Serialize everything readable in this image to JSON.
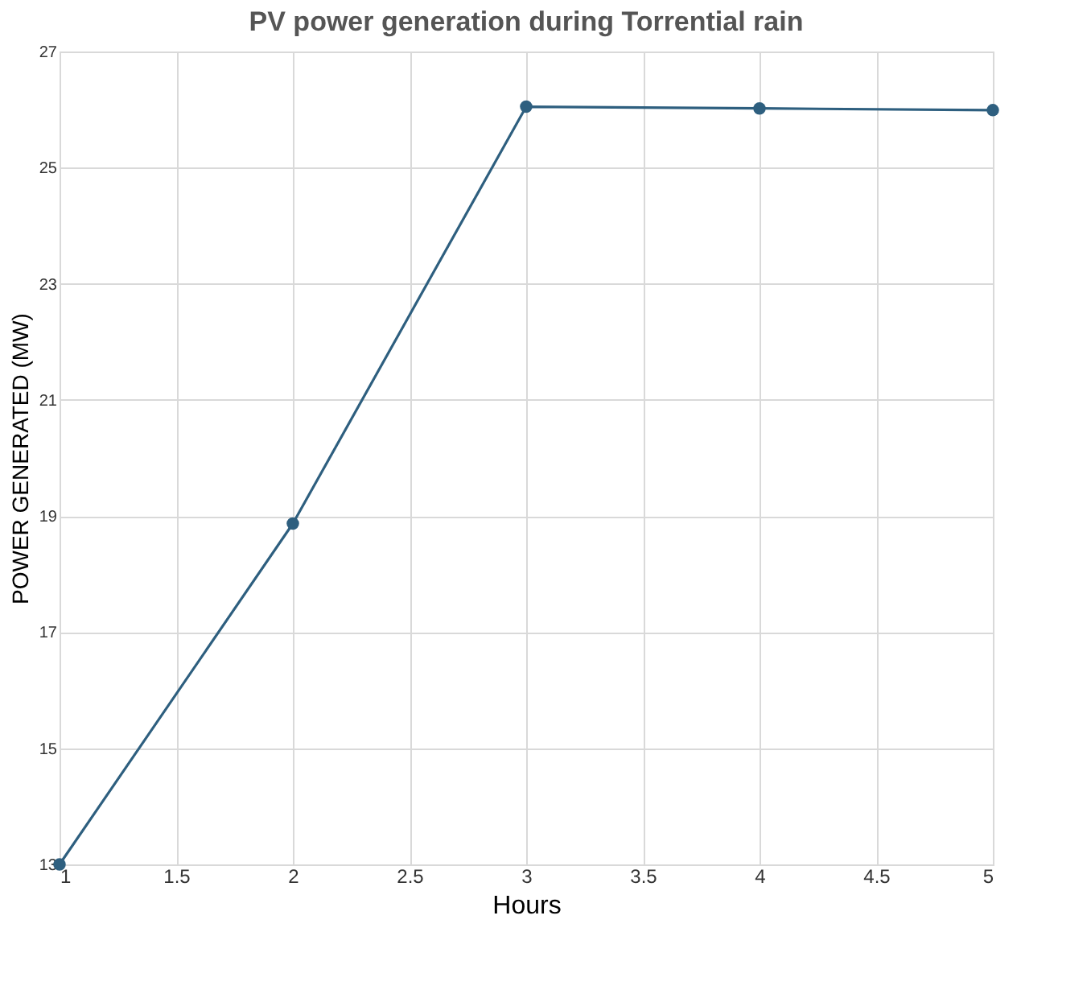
{
  "chart_data": {
    "type": "line",
    "title": "PV power generation during Torrential rain",
    "xlabel": "Hours",
    "ylabel": "POWER GENERATED (MW)",
    "x": [
      1,
      2,
      3,
      4,
      5
    ],
    "series": [
      {
        "color": "#2e5f7f",
        "values": [
          13.0,
          18.87,
          26.05,
          26.02,
          25.99
        ]
      }
    ],
    "xlim": [
      1,
      5
    ],
    "xticks": [
      1,
      1.5,
      2,
      2.5,
      3,
      3.5,
      4,
      4.5,
      5
    ],
    "ylim": [
      13,
      27
    ],
    "yticks": [
      13,
      15,
      17,
      19,
      21,
      23,
      25,
      27
    ],
    "grid": true,
    "marker": "circle",
    "line_style": "solid"
  }
}
